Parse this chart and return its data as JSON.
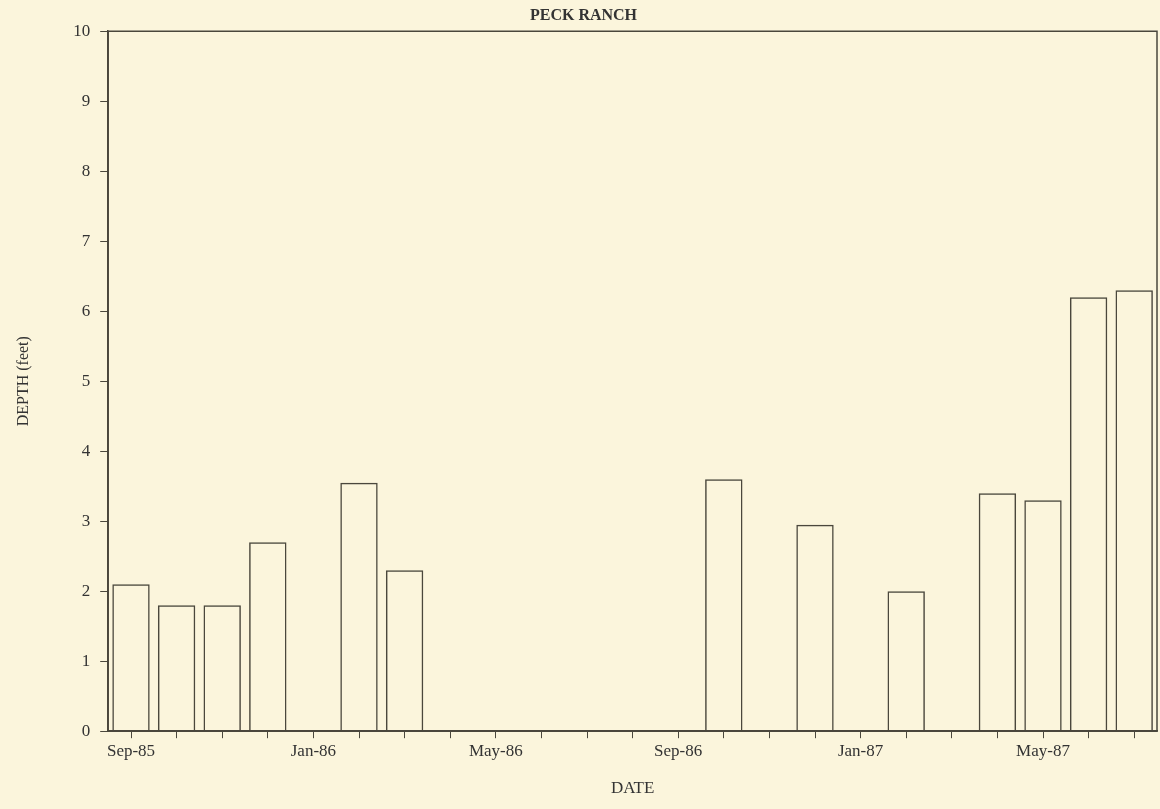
{
  "chart_data": {
    "type": "bar",
    "title": "PECK RANCH",
    "xlabel": "DATE",
    "ylabel": "DEPTH (feet)",
    "categories": [
      "Sep-85",
      null,
      null,
      null,
      "Jan-86",
      null,
      null,
      null,
      "May-86",
      null,
      null,
      null,
      "Sep-86",
      null,
      null,
      null,
      "Jan-87",
      null,
      null,
      null,
      "May-87",
      null,
      null
    ],
    "values": [
      2.1,
      1.8,
      1.8,
      2.7,
      null,
      3.55,
      2.3,
      null,
      null,
      null,
      null,
      null,
      null,
      3.6,
      null,
      2.95,
      null,
      2.0,
      null,
      3.4,
      3.3,
      6.2,
      6.3
    ],
    "color": "#4a473c",
    "ylim": [
      0,
      10
    ],
    "yticks": [
      0,
      1,
      2,
      3,
      4,
      5,
      6,
      7,
      8,
      9,
      10
    ],
    "grid": false,
    "legend": false
  }
}
